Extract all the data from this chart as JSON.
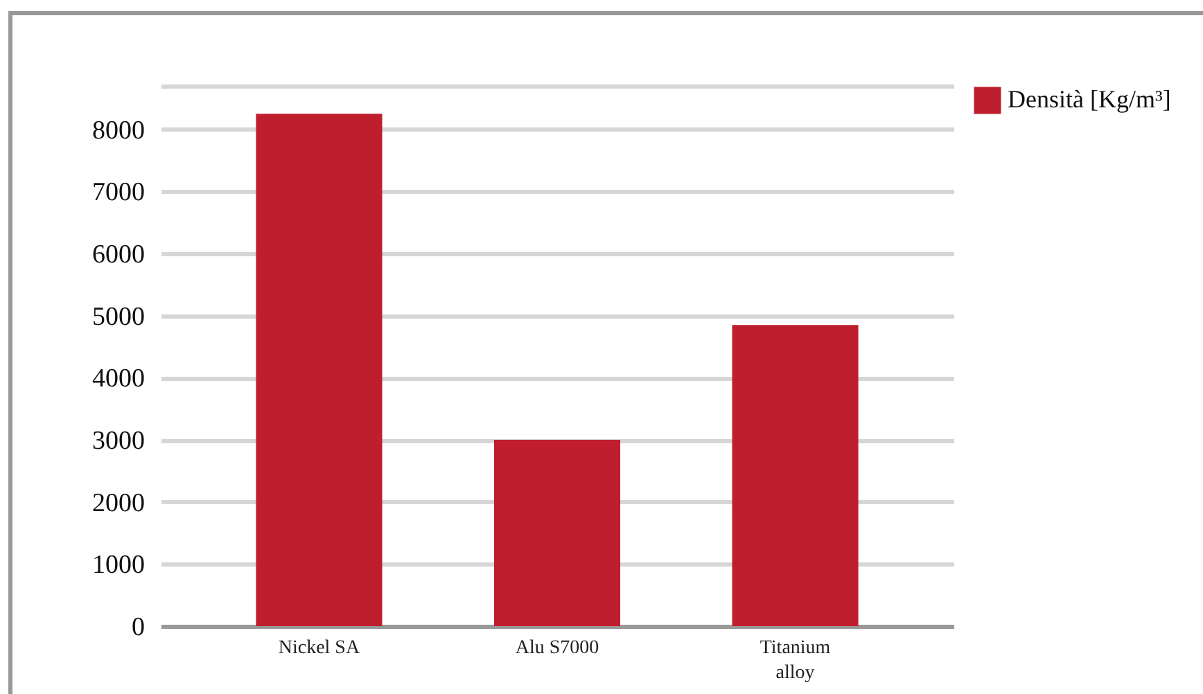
{
  "chart_data": {
    "type": "bar",
    "categories": [
      "Nickel SA",
      "Alu S7000",
      "Titanium alloy"
    ],
    "series": [
      {
        "name": "Densità [Kg/m³]",
        "color": "#be1e2d",
        "values": [
          8250,
          3000,
          4850
        ]
      }
    ],
    "ylim": [
      0,
      8700
    ],
    "yticks": [
      0,
      1000,
      2000,
      3000,
      4000,
      5000,
      6000,
      7000,
      8000,
      {
        "value": 8700,
        "label": null
      }
    ],
    "grid": "y",
    "legend": "right"
  }
}
